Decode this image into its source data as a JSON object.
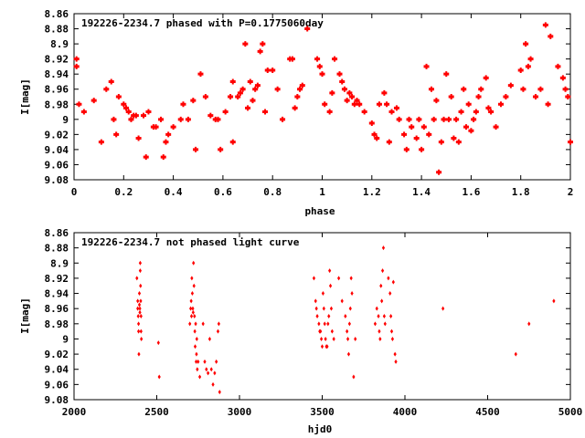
{
  "chart_data": [
    {
      "type": "scatter",
      "title": "192226-2234.7 phased with P=0.1775060day",
      "xlabel": "phase",
      "ylabel": "I[mag]",
      "xlim": [
        0,
        2
      ],
      "ylim": [
        9.08,
        8.86
      ],
      "y_inverted": true,
      "grid": false,
      "marker_color": "#ff0000",
      "x_ticks": [
        "0",
        "0.2",
        "0.4",
        "0.6",
        "0.8",
        "1",
        "1.2",
        "1.4",
        "1.6",
        "1.8",
        "2"
      ],
      "y_ticks": [
        "8.86",
        "8.88",
        "8.9",
        "8.92",
        "8.94",
        "8.96",
        "8.98",
        "9",
        "9.02",
        "9.04",
        "9.06",
        "9.08"
      ],
      "points": [
        [
          0.01,
          8.92
        ],
        [
          0.01,
          8.93
        ],
        [
          0.02,
          8.98
        ],
        [
          0.04,
          8.99
        ],
        [
          0.08,
          8.975
        ],
        [
          0.11,
          9.03
        ],
        [
          0.13,
          8.96
        ],
        [
          0.15,
          8.95
        ],
        [
          0.16,
          9.0
        ],
        [
          0.17,
          9.02
        ],
        [
          0.18,
          8.97
        ],
        [
          0.2,
          8.98
        ],
        [
          0.21,
          8.985
        ],
        [
          0.22,
          8.99
        ],
        [
          0.23,
          9.0
        ],
        [
          0.24,
          8.995
        ],
        [
          0.25,
          8.995
        ],
        [
          0.26,
          9.025
        ],
        [
          0.28,
          8.995
        ],
        [
          0.29,
          9.05
        ],
        [
          0.3,
          8.99
        ],
        [
          0.32,
          9.01
        ],
        [
          0.33,
          9.01
        ],
        [
          0.35,
          9.0
        ],
        [
          0.36,
          9.05
        ],
        [
          0.37,
          9.03
        ],
        [
          0.38,
          9.02
        ],
        [
          0.4,
          9.01
        ],
        [
          0.43,
          9.0
        ],
        [
          0.44,
          8.98
        ],
        [
          0.46,
          9.0
        ],
        [
          0.48,
          8.975
        ],
        [
          0.49,
          9.04
        ],
        [
          0.51,
          8.94
        ],
        [
          0.53,
          8.97
        ],
        [
          0.55,
          8.995
        ],
        [
          0.57,
          9.0
        ],
        [
          0.58,
          9.0
        ],
        [
          0.59,
          9.04
        ],
        [
          0.61,
          8.99
        ],
        [
          0.63,
          8.97
        ],
        [
          0.64,
          8.95
        ],
        [
          0.64,
          9.03
        ],
        [
          0.66,
          8.97
        ],
        [
          0.67,
          8.965
        ],
        [
          0.68,
          8.96
        ],
        [
          0.69,
          8.9
        ],
        [
          0.7,
          8.985
        ],
        [
          0.71,
          8.95
        ],
        [
          0.72,
          8.975
        ],
        [
          0.73,
          8.96
        ],
        [
          0.74,
          8.955
        ],
        [
          0.75,
          8.91
        ],
        [
          0.76,
          8.9
        ],
        [
          0.77,
          8.99
        ],
        [
          0.78,
          8.935
        ],
        [
          0.8,
          8.935
        ],
        [
          0.82,
          8.96
        ],
        [
          0.84,
          9.0
        ],
        [
          0.87,
          8.92
        ],
        [
          0.88,
          8.92
        ],
        [
          0.89,
          8.985
        ],
        [
          0.9,
          8.97
        ],
        [
          0.91,
          8.96
        ],
        [
          0.92,
          8.955
        ],
        [
          0.94,
          8.88
        ],
        [
          0.98,
          8.92
        ],
        [
          0.99,
          8.93
        ],
        [
          1.0,
          8.94
        ],
        [
          1.01,
          8.98
        ],
        [
          1.03,
          8.99
        ],
        [
          1.04,
          8.965
        ],
        [
          1.05,
          8.92
        ],
        [
          1.07,
          8.94
        ],
        [
          1.08,
          8.95
        ],
        [
          1.09,
          8.96
        ],
        [
          1.1,
          8.975
        ],
        [
          1.11,
          8.965
        ],
        [
          1.12,
          8.97
        ],
        [
          1.13,
          8.98
        ],
        [
          1.14,
          8.975
        ],
        [
          1.15,
          8.98
        ],
        [
          1.17,
          8.99
        ],
        [
          1.2,
          9.005
        ],
        [
          1.21,
          9.02
        ],
        [
          1.22,
          9.025
        ],
        [
          1.23,
          8.98
        ],
        [
          1.25,
          8.965
        ],
        [
          1.26,
          8.98
        ],
        [
          1.27,
          9.03
        ],
        [
          1.28,
          8.99
        ],
        [
          1.3,
          8.985
        ],
        [
          1.31,
          9.0
        ],
        [
          1.33,
          9.02
        ],
        [
          1.34,
          9.04
        ],
        [
          1.35,
          9.0
        ],
        [
          1.36,
          9.01
        ],
        [
          1.38,
          9.025
        ],
        [
          1.39,
          9.0
        ],
        [
          1.4,
          9.04
        ],
        [
          1.41,
          9.01
        ],
        [
          1.42,
          8.93
        ],
        [
          1.43,
          9.02
        ],
        [
          1.44,
          8.96
        ],
        [
          1.45,
          9.0
        ],
        [
          1.46,
          8.975
        ],
        [
          1.47,
          9.07
        ],
        [
          1.48,
          9.03
        ],
        [
          1.49,
          9.0
        ],
        [
          1.5,
          8.94
        ],
        [
          1.51,
          9.0
        ],
        [
          1.52,
          8.97
        ],
        [
          1.53,
          9.025
        ],
        [
          1.54,
          9.0
        ],
        [
          1.55,
          9.03
        ],
        [
          1.56,
          8.99
        ],
        [
          1.57,
          8.96
        ],
        [
          1.58,
          9.01
        ],
        [
          1.59,
          8.98
        ],
        [
          1.6,
          9.015
        ],
        [
          1.61,
          9.0
        ],
        [
          1.62,
          8.99
        ],
        [
          1.63,
          8.97
        ],
        [
          1.64,
          8.96
        ],
        [
          1.66,
          8.945
        ],
        [
          1.67,
          8.985
        ],
        [
          1.68,
          8.99
        ],
        [
          1.7,
          9.01
        ],
        [
          1.72,
          8.98
        ],
        [
          1.74,
          8.97
        ],
        [
          1.76,
          8.955
        ],
        [
          1.8,
          8.935
        ],
        [
          1.81,
          8.96
        ],
        [
          1.82,
          8.9
        ],
        [
          1.83,
          8.93
        ],
        [
          1.84,
          8.92
        ],
        [
          1.86,
          8.97
        ],
        [
          1.88,
          8.96
        ],
        [
          1.9,
          8.875
        ],
        [
          1.91,
          8.98
        ],
        [
          1.92,
          8.89
        ],
        [
          1.95,
          8.93
        ],
        [
          1.97,
          8.945
        ],
        [
          1.98,
          8.96
        ],
        [
          1.99,
          8.97
        ],
        [
          2.0,
          9.03
        ]
      ]
    },
    {
      "type": "scatter",
      "title": "192226-2234.7 not phased light curve",
      "xlabel": "hjd0",
      "ylabel": "I[mag]",
      "xlim": [
        2000,
        5000
      ],
      "ylim": [
        9.08,
        8.86
      ],
      "y_inverted": true,
      "grid": false,
      "marker_color": "#ff0000",
      "x_ticks": [
        "2000",
        "2500",
        "3000",
        "3500",
        "4000",
        "4500",
        "5000"
      ],
      "y_ticks": [
        "8.86",
        "8.88",
        "8.9",
        "8.92",
        "8.94",
        "8.96",
        "8.98",
        "9",
        "9.02",
        "9.04",
        "9.06",
        "9.08"
      ],
      "points": [
        [
          2380,
          8.92
        ],
        [
          2385,
          8.95
        ],
        [
          2385,
          8.96
        ],
        [
          2388,
          8.97
        ],
        [
          2390,
          8.98
        ],
        [
          2390,
          8.99
        ],
        [
          2392,
          9.02
        ],
        [
          2395,
          8.94
        ],
        [
          2395,
          8.955
        ],
        [
          2398,
          8.965
        ],
        [
          2398,
          8.96
        ],
        [
          2400,
          8.91
        ],
        [
          2400,
          8.9
        ],
        [
          2402,
          8.93
        ],
        [
          2403,
          8.95
        ],
        [
          2405,
          8.97
        ],
        [
          2405,
          8.99
        ],
        [
          2407,
          9.0
        ],
        [
          2510,
          9.005
        ],
        [
          2515,
          9.05
        ],
        [
          2700,
          8.98
        ],
        [
          2705,
          8.96
        ],
        [
          2708,
          8.95
        ],
        [
          2710,
          8.97
        ],
        [
          2712,
          8.92
        ],
        [
          2715,
          8.94
        ],
        [
          2718,
          8.96
        ],
        [
          2720,
          8.965
        ],
        [
          2722,
          8.9
        ],
        [
          2725,
          8.93
        ],
        [
          2728,
          8.97
        ],
        [
          2730,
          8.99
        ],
        [
          2732,
          9.01
        ],
        [
          2735,
          8.98
        ],
        [
          2738,
          9.03
        ],
        [
          2740,
          9.02
        ],
        [
          2742,
          9.0
        ],
        [
          2745,
          9.04
        ],
        [
          2750,
          9.03
        ],
        [
          2760,
          9.05
        ],
        [
          2780,
          8.98
        ],
        [
          2790,
          9.03
        ],
        [
          2800,
          9.04
        ],
        [
          2810,
          9.045
        ],
        [
          2820,
          9.0
        ],
        [
          2830,
          9.04
        ],
        [
          2840,
          9.06
        ],
        [
          2850,
          9.045
        ],
        [
          2860,
          9.03
        ],
        [
          2870,
          8.99
        ],
        [
          2875,
          8.98
        ],
        [
          2880,
          9.07
        ],
        [
          3450,
          8.92
        ],
        [
          3460,
          8.95
        ],
        [
          3465,
          8.96
        ],
        [
          3470,
          8.97
        ],
        [
          3480,
          8.98
        ],
        [
          3485,
          8.99
        ],
        [
          3490,
          8.99
        ],
        [
          3495,
          9.0
        ],
        [
          3500,
          9.01
        ],
        [
          3505,
          8.94
        ],
        [
          3510,
          8.96
        ],
        [
          3515,
          8.98
        ],
        [
          3520,
          9.0
        ],
        [
          3525,
          9.01
        ],
        [
          3530,
          9.01
        ],
        [
          3535,
          8.98
        ],
        [
          3540,
          8.97
        ],
        [
          3545,
          8.91
        ],
        [
          3550,
          8.93
        ],
        [
          3555,
          8.96
        ],
        [
          3560,
          8.99
        ],
        [
          3570,
          9.0
        ],
        [
          3600,
          8.92
        ],
        [
          3620,
          8.95
        ],
        [
          3640,
          8.97
        ],
        [
          3650,
          8.99
        ],
        [
          3655,
          9.0
        ],
        [
          3660,
          9.02
        ],
        [
          3665,
          8.98
        ],
        [
          3670,
          8.96
        ],
        [
          3675,
          8.92
        ],
        [
          3680,
          8.94
        ],
        [
          3690,
          9.05
        ],
        [
          3700,
          9.0
        ],
        [
          3820,
          8.98
        ],
        [
          3830,
          8.96
        ],
        [
          3840,
          8.97
        ],
        [
          3845,
          8.99
        ],
        [
          3850,
          9.0
        ],
        [
          3855,
          8.93
        ],
        [
          3860,
          8.95
        ],
        [
          3865,
          8.91
        ],
        [
          3870,
          8.88
        ],
        [
          3875,
          8.97
        ],
        [
          3880,
          8.98
        ],
        [
          3900,
          8.92
        ],
        [
          3910,
          8.94
        ],
        [
          3915,
          8.97
        ],
        [
          3920,
          8.99
        ],
        [
          3925,
          9.0
        ],
        [
          3930,
          8.925
        ],
        [
          3940,
          9.02
        ],
        [
          3945,
          9.03
        ],
        [
          4230,
          8.96
        ],
        [
          4670,
          9.02
        ],
        [
          4750,
          8.98
        ],
        [
          4900,
          8.95
        ]
      ]
    }
  ]
}
